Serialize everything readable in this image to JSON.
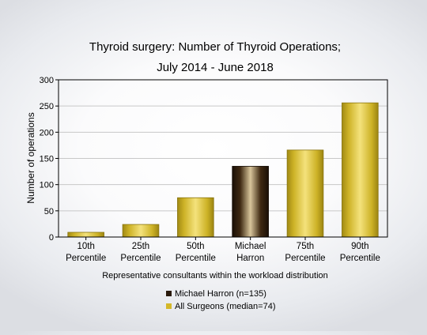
{
  "chart_data": {
    "type": "bar",
    "title_lines": [
      "Thyroid surgery: Number of Thyroid Operations;",
      "July 2014 - June 2018"
    ],
    "xlabel": "Representative consultants within the workload distribution",
    "ylabel": "Number of operations",
    "ylim": [
      0,
      300
    ],
    "yticks": [
      0,
      50,
      100,
      150,
      200,
      250,
      300
    ],
    "grid": true,
    "categories": [
      [
        "10th",
        "Percentile"
      ],
      [
        "25th",
        "Percentile"
      ],
      [
        "50th",
        "Percentile"
      ],
      [
        "Michael",
        "Harron"
      ],
      [
        "75th",
        "Percentile"
      ],
      [
        "90th",
        "Percentile"
      ]
    ],
    "values": [
      9,
      24,
      75,
      135,
      166,
      256
    ],
    "highlight_index": 3,
    "legend": [
      {
        "label": "Michael Harron (n=135)",
        "color": "#3a2410"
      },
      {
        "label": "All Surgeons (median=74)",
        "color": "#d4b82a"
      }
    ],
    "legend_position": "bottom-center"
  }
}
